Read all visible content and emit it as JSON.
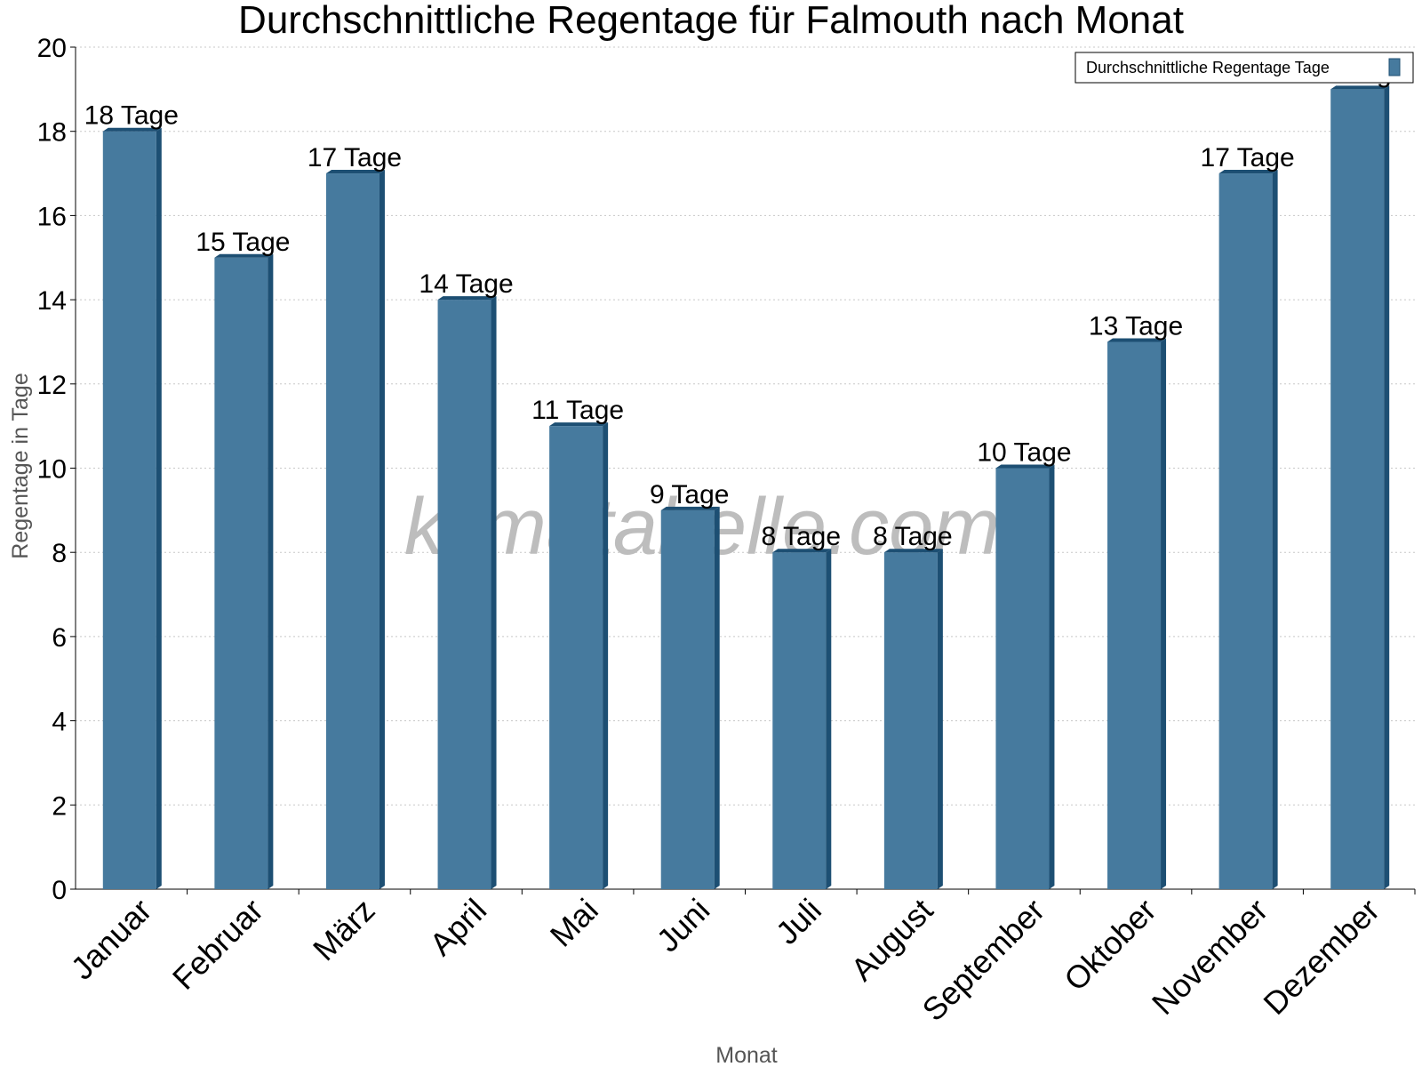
{
  "chart_data": {
    "type": "bar",
    "title": "Durchschnittliche Regentage für Falmouth nach Monat",
    "xlabel": "Monat",
    "ylabel": "Regentage in Tage",
    "ylim": [
      0,
      20
    ],
    "yticks": [
      0,
      2,
      4,
      6,
      8,
      10,
      12,
      14,
      16,
      18,
      20
    ],
    "grid": true,
    "legend_position": "top-right",
    "categories": [
      "Januar",
      "Februar",
      "März",
      "April",
      "Mai",
      "Juni",
      "Juli",
      "August",
      "September",
      "Oktober",
      "November",
      "Dezember"
    ],
    "series": [
      {
        "name": "Durchschnittliche Regentage Tage",
        "values": [
          18,
          15,
          17,
          14,
          11,
          9,
          8,
          8,
          10,
          13,
          17,
          19
        ],
        "labels": [
          "18 Tage",
          "15 Tage",
          "17 Tage",
          "14 Tage",
          "11 Tage",
          "9 Tage",
          "8 Tage",
          "8 Tage",
          "10 Tage",
          "13 Tage",
          "17 Tage",
          "19 Tage"
        ],
        "color": "#467a9e",
        "side_color": "#1d4f73"
      }
    ]
  },
  "watermark": "klimatabelle.com"
}
